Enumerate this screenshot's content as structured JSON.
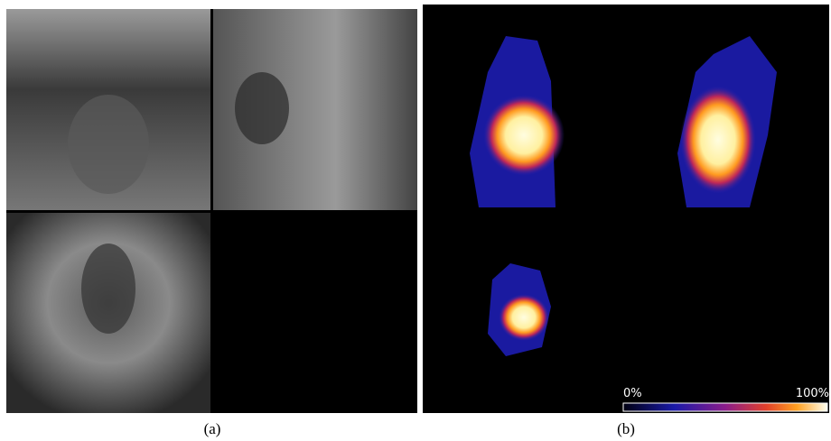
{
  "panels": [
    {
      "caption": "(a)"
    },
    {
      "caption": "(b)"
    }
  ],
  "colorbar": {
    "min_label": "0%",
    "max_label": "100%"
  }
}
